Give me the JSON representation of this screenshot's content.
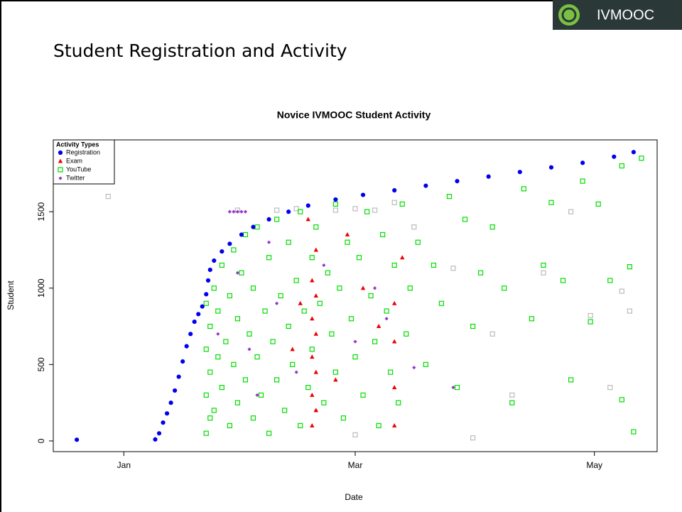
{
  "header": {
    "brand": "IVMOOC",
    "title": "Student Registration and Activity"
  },
  "chart_data": {
    "type": "scatter",
    "title": "Novice IVMOOC Student Activity",
    "x_label": "Date",
    "y_label": "Student",
    "legend_title": "Activity Types",
    "legend": "top-left",
    "xlim": [
      -17,
      137
    ],
    "ylim": [
      -70,
      1970
    ],
    "xticks": [
      {
        "value": 1,
        "label": "Jan"
      },
      {
        "value": 60,
        "label": "Mar"
      },
      {
        "value": 121,
        "label": "May"
      }
    ],
    "yticks": [
      0,
      500,
      1000,
      1500
    ],
    "series": [
      {
        "color": "#bbbbbb",
        "marker": "square-open",
        "x": [
          -3,
          30,
          40,
          45,
          55,
          60,
          65,
          70,
          75,
          85,
          95,
          100,
          108,
          115,
          120,
          125,
          128,
          90,
          130,
          60
        ],
        "values": [
          1600,
          1510,
          1510,
          1520,
          1510,
          1520,
          1510,
          1560,
          1400,
          1130,
          700,
          300,
          1100,
          1500,
          820,
          350,
          980,
          20,
          850,
          40
        ]
      },
      {
        "name": "YouTube",
        "color": "#00dd00",
        "marker": "square-open",
        "x": [
          22,
          22,
          22,
          22,
          23,
          23,
          23,
          24,
          24,
          25,
          25,
          26,
          26,
          27,
          28,
          28,
          29,
          29,
          30,
          30,
          31,
          32,
          32,
          33,
          34,
          34,
          35,
          35,
          36,
          37,
          38,
          38,
          39,
          40,
          40,
          41,
          42,
          43,
          43,
          44,
          45,
          46,
          46,
          47,
          48,
          49,
          49,
          50,
          51,
          52,
          53,
          54,
          55,
          55,
          56,
          57,
          58,
          59,
          60,
          61,
          62,
          63,
          64,
          65,
          66,
          67,
          68,
          69,
          70,
          71,
          72,
          73,
          74,
          76,
          78,
          80,
          82,
          84,
          86,
          88,
          90,
          92,
          95,
          98,
          100,
          103,
          105,
          108,
          110,
          113,
          115,
          118,
          120,
          122,
          125,
          128,
          130,
          133,
          131,
          128
        ],
        "values": [
          50,
          300,
          600,
          900,
          150,
          450,
          750,
          1000,
          200,
          550,
          850,
          1150,
          350,
          650,
          100,
          950,
          1250,
          500,
          250,
          800,
          1100,
          400,
          1350,
          700,
          150,
          1000,
          1400,
          550,
          300,
          850,
          1200,
          50,
          650,
          1450,
          400,
          950,
          200,
          1300,
          750,
          500,
          1050,
          1500,
          100,
          850,
          350,
          1200,
          600,
          1400,
          900,
          250,
          1100,
          700,
          1550,
          450,
          1000,
          150,
          1300,
          800,
          550,
          1200,
          300,
          1500,
          950,
          650,
          100,
          1350,
          850,
          450,
          1150,
          250,
          1550,
          700,
          1000,
          1300,
          500,
          1150,
          900,
          1600,
          350,
          1450,
          750,
          1100,
          1400,
          1000,
          250,
          1650,
          800,
          1150,
          1560,
          1050,
          400,
          1700,
          780,
          1550,
          1050,
          1800,
          1140,
          1850,
          60,
          270
        ]
      },
      {
        "name": "Twitter",
        "color": "#9933cc",
        "marker": "diamond",
        "x": [
          28,
          29,
          30,
          31,
          32,
          25,
          35,
          40,
          45,
          52,
          60,
          68,
          75,
          85,
          30,
          38,
          50,
          65,
          33
        ],
        "values": [
          1500,
          1500,
          1500,
          1500,
          1500,
          700,
          300,
          900,
          450,
          1150,
          650,
          800,
          480,
          350,
          1100,
          1300,
          200,
          1000,
          600
        ]
      },
      {
        "name": "Exam",
        "color": "#ee0000",
        "marker": "triangle",
        "x": [
          49,
          49,
          49,
          49,
          49,
          50,
          50,
          50,
          50,
          50,
          44,
          46,
          55,
          62,
          70,
          70,
          70,
          70,
          72,
          66,
          58,
          48
        ],
        "values": [
          100,
          300,
          550,
          800,
          1050,
          200,
          450,
          700,
          950,
          1250,
          600,
          900,
          400,
          1000,
          100,
          350,
          650,
          900,
          1200,
          750,
          1350,
          1450
        ]
      },
      {
        "name": "Registration",
        "color": "#0000ee",
        "marker": "circle",
        "x": [
          -11,
          9,
          10,
          11,
          12,
          13,
          14,
          15,
          16,
          17,
          18,
          19,
          20,
          21,
          22,
          22.5,
          23,
          24,
          26,
          28,
          31,
          34,
          38,
          43,
          48,
          55,
          62,
          70,
          78,
          86,
          94,
          102,
          110,
          118,
          126,
          131
        ],
        "values": [
          8,
          10,
          50,
          120,
          180,
          250,
          330,
          420,
          520,
          620,
          700,
          780,
          830,
          880,
          960,
          1050,
          1120,
          1180,
          1240,
          1290,
          1350,
          1400,
          1450,
          1500,
          1540,
          1580,
          1610,
          1640,
          1670,
          1700,
          1730,
          1760,
          1790,
          1820,
          1860,
          1890
        ]
      }
    ]
  }
}
